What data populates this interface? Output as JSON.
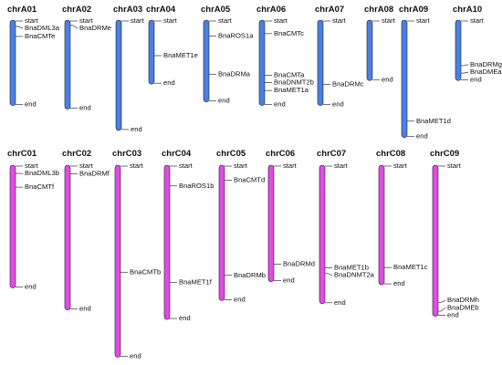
{
  "colors": {
    "A": "#4a7fe4",
    "C": "#e24be6",
    "tick": "#333333",
    "text": "#111111"
  },
  "chart_data": {
    "type": "chromosome-map",
    "chromosomes": [
      {
        "name": "chrA01",
        "genome": "A",
        "length": 24,
        "genes": [
          {
            "name": "BnaDML3a",
            "pos": 1.8
          },
          {
            "name": "BnaCMTe",
            "pos": 4.6
          }
        ]
      },
      {
        "name": "chrA02",
        "genome": "A",
        "length": 25,
        "genes": [
          {
            "name": "BnaDRMe",
            "pos": 1.5
          }
        ]
      },
      {
        "name": "chrA03",
        "genome": "A",
        "length": 31,
        "genes": []
      },
      {
        "name": "chrA04",
        "genome": "A",
        "length": 18,
        "genes": [
          {
            "name": "BnaMET1e",
            "pos": 10.0
          }
        ]
      },
      {
        "name": "chrA05",
        "genome": "A",
        "length": 23,
        "genes": [
          {
            "name": "BnaROS1a",
            "pos": 4.5
          },
          {
            "name": "BnaDRMa",
            "pos": 15.2
          }
        ]
      },
      {
        "name": "chrA06",
        "genome": "A",
        "length": 24,
        "genes": [
          {
            "name": "BnaCMTc",
            "pos": 3.8
          },
          {
            "name": "BnaCMTa",
            "pos": 15.5
          },
          {
            "name": "BnaDNMT2b",
            "pos": 17.6
          },
          {
            "name": "BnaMET1a",
            "pos": 19.8
          }
        ]
      },
      {
        "name": "chrA07",
        "genome": "A",
        "length": 24,
        "genes": [
          {
            "name": "BnaDRMc",
            "pos": 18.1
          }
        ]
      },
      {
        "name": "chrA08",
        "genome": "A",
        "length": 17,
        "genes": []
      },
      {
        "name": "chrA09",
        "genome": "A",
        "length": 33,
        "genes": [
          {
            "name": "BnaMET1d",
            "pos": 28.4
          }
        ]
      },
      {
        "name": "chrA10",
        "genome": "A",
        "length": 17,
        "genes": [
          {
            "name": "BnaDRMg",
            "pos": 12.8
          },
          {
            "name": "BnaDMEa",
            "pos": 14.9
          }
        ]
      },
      {
        "name": "chrC01",
        "genome": "C",
        "length": 39,
        "genes": [
          {
            "name": "BnaDML3b",
            "pos": 2.6
          },
          {
            "name": "BnaCMTf",
            "pos": 7.0
          }
        ]
      },
      {
        "name": "chrC02",
        "genome": "C",
        "length": 46,
        "genes": [
          {
            "name": "BnaDRMf",
            "pos": 2.8
          }
        ]
      },
      {
        "name": "chrC03",
        "genome": "C",
        "length": 61,
        "genes": [
          {
            "name": "BnaCMTb",
            "pos": 34.0
          }
        ]
      },
      {
        "name": "chrC04",
        "genome": "C",
        "length": 49,
        "genes": [
          {
            "name": "BnaROS1b",
            "pos": 6.6
          },
          {
            "name": "BnaMET1f",
            "pos": 37.3
          }
        ]
      },
      {
        "name": "chrC05",
        "genome": "C",
        "length": 43,
        "genes": [
          {
            "name": "BnaCMTd",
            "pos": 4.8
          },
          {
            "name": "BnaDRMb",
            "pos": 35.0
          }
        ]
      },
      {
        "name": "chrC06",
        "genome": "C",
        "length": 37,
        "genes": [
          {
            "name": "BnaDRMd",
            "pos": 31.5
          }
        ]
      },
      {
        "name": "chrC07",
        "genome": "C",
        "length": 44,
        "genes": [
          {
            "name": "BnaMET1b",
            "pos": 32.6
          },
          {
            "name": "BnaDNMT2a",
            "pos": 34.4
          }
        ]
      },
      {
        "name": "chrC08",
        "genome": "C",
        "length": 38,
        "genes": [
          {
            "name": "BnaMET1c",
            "pos": 32.5
          }
        ]
      },
      {
        "name": "chrC09",
        "genome": "C",
        "length": 48,
        "genes": [
          {
            "name": "BnaDRMh",
            "pos": 43.6
          },
          {
            "name": "BnaDMEb",
            "pos": 46.4
          }
        ]
      }
    ],
    "start_label": "start",
    "end_label": "end"
  }
}
